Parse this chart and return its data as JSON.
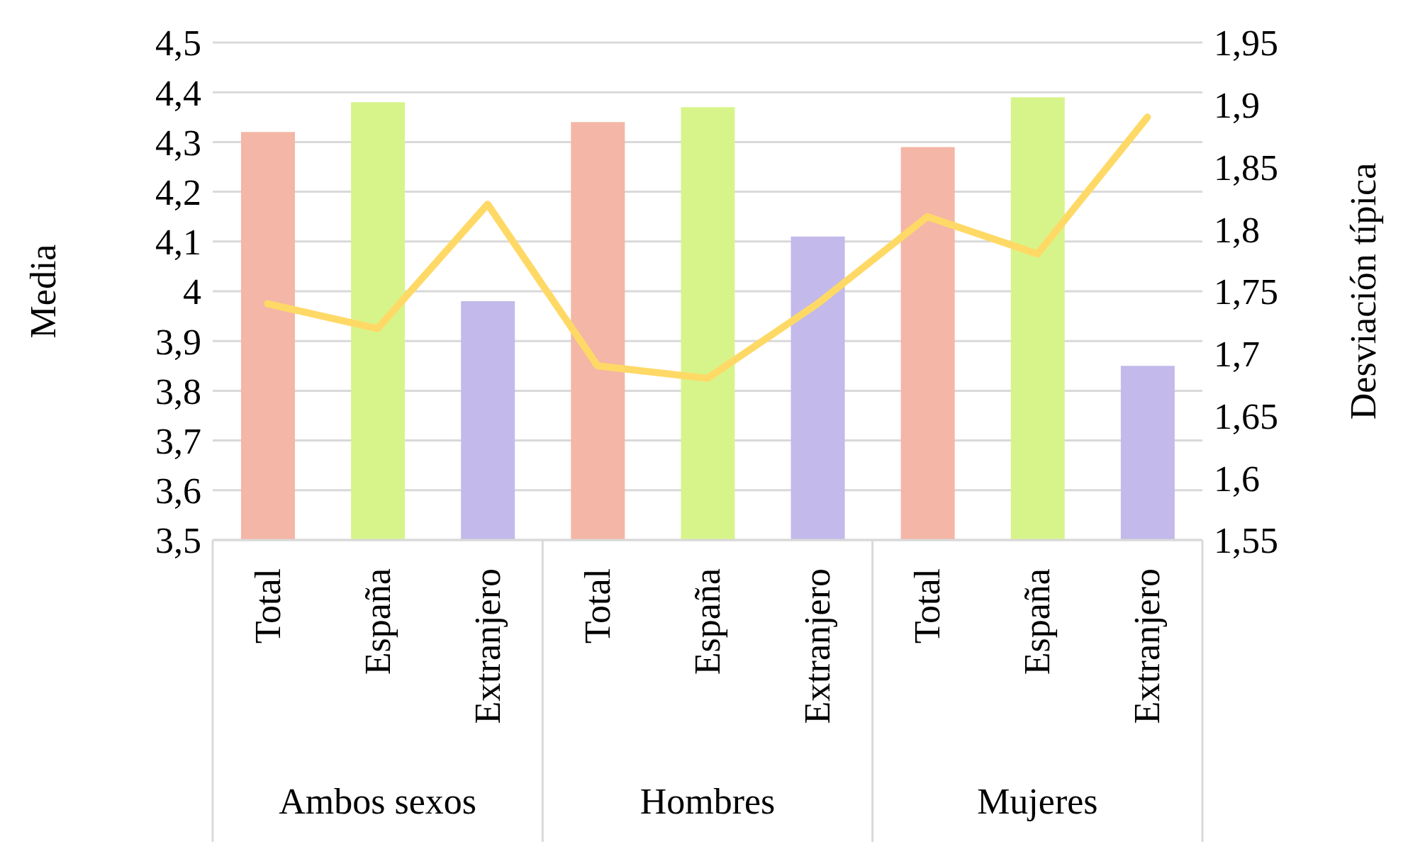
{
  "chart_data": {
    "type": "bar",
    "ylabel": "Media",
    "y2label": "Desviación típica",
    "categories": [
      "Total",
      "España",
      "Extranjero",
      "Total",
      "España",
      "Extranjero",
      "Total",
      "España",
      "Extranjero"
    ],
    "annotations": [
      "Ambos sexos",
      "Hombres",
      "Mujeres"
    ],
    "series": [
      {
        "colors": [
          "#f4b6a6",
          "#d7f48a",
          "#c3b9ea",
          "#f4b6a6",
          "#d7f48a",
          "#c3b9ea",
          "#f4b6a6",
          "#d7f48a",
          "#c3b9ea"
        ],
        "values": [
          4.32,
          4.38,
          3.98,
          4.34,
          4.37,
          4.11,
          4.29,
          4.39,
          3.85
        ]
      },
      {
        "type": "line",
        "axis": "y2",
        "color": "#ffd966",
        "values": [
          1.74,
          1.72,
          1.82,
          1.69,
          1.68,
          1.74,
          1.81,
          1.78,
          1.89
        ]
      }
    ],
    "ylim": [
      3.5,
      4.5
    ],
    "yticks": [
      {
        "value": 3.5,
        "label": "3,5"
      },
      {
        "value": 3.6,
        "label": "3,6"
      },
      {
        "value": 3.7,
        "label": "3,7"
      },
      {
        "value": 3.8,
        "label": "3,8"
      },
      {
        "value": 3.9,
        "label": "3,9"
      },
      {
        "value": 4,
        "label": "4"
      },
      {
        "value": 4.1,
        "label": "4,1"
      },
      {
        "value": 4.2,
        "label": "4,2"
      },
      {
        "value": 4.3,
        "label": "4,3"
      },
      {
        "value": 4.4,
        "label": "4,4"
      },
      {
        "value": 4.5,
        "label": "4,5"
      }
    ],
    "y2lim": [
      1.55,
      1.95
    ],
    "y2ticks": [
      {
        "value": 1.55,
        "label": "1,55"
      },
      {
        "value": 1.6,
        "label": "1,6"
      },
      {
        "value": 1.65,
        "label": "1,65"
      },
      {
        "value": 1.7,
        "label": "1,7"
      },
      {
        "value": 1.75,
        "label": "1,75"
      },
      {
        "value": 1.8,
        "label": "1,8"
      },
      {
        "value": 1.85,
        "label": "1,85"
      },
      {
        "value": 1.9,
        "label": "1,9"
      },
      {
        "value": 1.95,
        "label": "1,95"
      }
    ],
    "grid": "y",
    "legend": false
  }
}
